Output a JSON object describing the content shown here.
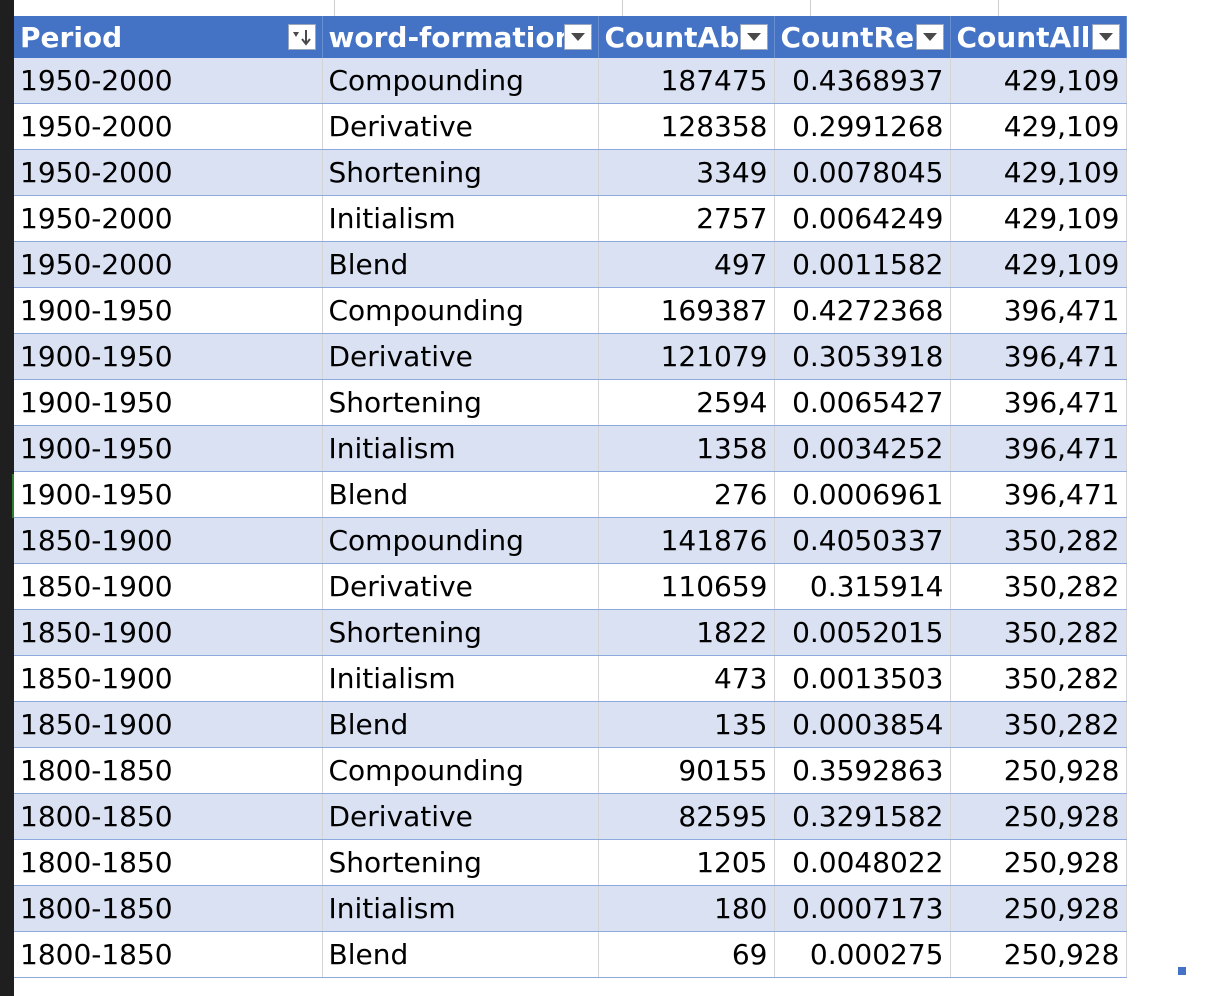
{
  "table": {
    "headers": {
      "period": "Period",
      "word_formation": "word-formation",
      "count_abs": "CountAbs",
      "count_rel": "CountRel",
      "count_all": "CountAll"
    },
    "rows": [
      [
        "1950-2000",
        "Compounding",
        "187475",
        "0.4368937",
        "429,109"
      ],
      [
        "1950-2000",
        "Derivative",
        "128358",
        "0.2991268",
        "429,109"
      ],
      [
        "1950-2000",
        "Shortening",
        "3349",
        "0.0078045",
        "429,109"
      ],
      [
        "1950-2000",
        "Initialism",
        "2757",
        "0.0064249",
        "429,109"
      ],
      [
        "1950-2000",
        "Blend",
        "497",
        "0.0011582",
        "429,109"
      ],
      [
        "1900-1950",
        "Compounding",
        "169387",
        "0.4272368",
        "396,471"
      ],
      [
        "1900-1950",
        "Derivative",
        "121079",
        "0.3053918",
        "396,471"
      ],
      [
        "1900-1950",
        "Shortening",
        "2594",
        "0.0065427",
        "396,471"
      ],
      [
        "1900-1950",
        "Initialism",
        "1358",
        "0.0034252",
        "396,471"
      ],
      [
        "1900-1950",
        "Blend",
        "276",
        "0.0006961",
        "396,471"
      ],
      [
        "1850-1900",
        "Compounding",
        "141876",
        "0.4050337",
        "350,282"
      ],
      [
        "1850-1900",
        "Derivative",
        "110659",
        "0.315914",
        "350,282"
      ],
      [
        "1850-1900",
        "Shortening",
        "1822",
        "0.0052015",
        "350,282"
      ],
      [
        "1850-1900",
        "Initialism",
        "473",
        "0.0013503",
        "350,282"
      ],
      [
        "1850-1900",
        "Blend",
        "135",
        "0.0003854",
        "350,282"
      ],
      [
        "1800-1850",
        "Compounding",
        "90155",
        "0.3592863",
        "250,928"
      ],
      [
        "1800-1850",
        "Derivative",
        "82595",
        "0.3291582",
        "250,928"
      ],
      [
        "1800-1850",
        "Shortening",
        "1205",
        "0.0048022",
        "250,928"
      ],
      [
        "1800-1850",
        "Initialism",
        "180",
        "0.0007173",
        "250,928"
      ],
      [
        "1800-1850",
        "Blend",
        "69",
        "0.000275",
        "250,928"
      ]
    ]
  },
  "icons": {
    "period_filter": "sort-descending-filter-icon",
    "column_filter": "dropdown-arrow-icon"
  },
  "colors": {
    "header_bg": "#4472c4",
    "band_bg": "#d9e1f2"
  }
}
